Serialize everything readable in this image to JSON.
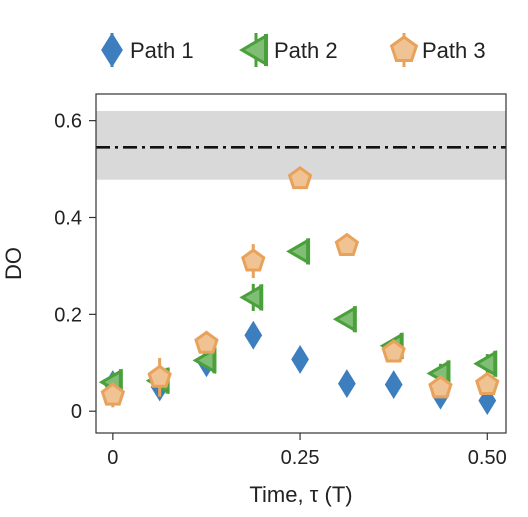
{
  "chart_data": {
    "type": "scatter",
    "xlabel": "Time, τ (T)",
    "ylabel": "DO",
    "xlim": [
      -0.0225,
      0.525
    ],
    "ylim": [
      -0.045,
      0.655
    ],
    "x_ticks": [
      0,
      0.25,
      0.5
    ],
    "x_tick_labels": [
      "0",
      "0.25",
      "0.50"
    ],
    "y_ticks": [
      0,
      0.2,
      0.4,
      0.6
    ],
    "y_tick_labels": [
      "0",
      "0.2",
      "0.4",
      "0.6"
    ],
    "grid": false,
    "legend_position": "top",
    "reference": {
      "value": 0.545,
      "band": [
        0.478,
        0.62
      ],
      "line_style": "dash-dot",
      "line_color": "#111111",
      "band_color": "#d9d9d9"
    },
    "series": [
      {
        "name": "Path 1",
        "marker": "diamond",
        "color": "#3d7ebf",
        "points": [
          {
            "x": 0.0,
            "y": 0.055,
            "err": 0.0
          },
          {
            "x": 0.0625,
            "y": 0.05,
            "err": 0.0
          },
          {
            "x": 0.125,
            "y": 0.1,
            "err": 0.0
          },
          {
            "x": 0.1875,
            "y": 0.157,
            "err": 0.0
          },
          {
            "x": 0.25,
            "y": 0.107,
            "err": 0.0
          },
          {
            "x": 0.3125,
            "y": 0.057,
            "err": 0.0
          },
          {
            "x": 0.375,
            "y": 0.055,
            "err": 0.0
          },
          {
            "x": 0.4375,
            "y": 0.033,
            "err": 0.0
          },
          {
            "x": 0.5,
            "y": 0.022,
            "err": 0.0
          }
        ]
      },
      {
        "name": "Path 2",
        "marker": "triangle-left",
        "color": "#4aa03a",
        "points": [
          {
            "x": 0.0,
            "y": 0.06,
            "err": 0.02
          },
          {
            "x": 0.0625,
            "y": 0.063,
            "err": 0.03
          },
          {
            "x": 0.125,
            "y": 0.105,
            "err": 0.0
          },
          {
            "x": 0.1875,
            "y": 0.235,
            "err": 0.028
          },
          {
            "x": 0.25,
            "y": 0.33,
            "err": 0.0
          },
          {
            "x": 0.3125,
            "y": 0.19,
            "err": 0.0
          },
          {
            "x": 0.375,
            "y": 0.135,
            "err": 0.0
          },
          {
            "x": 0.4375,
            "y": 0.078,
            "err": 0.02
          },
          {
            "x": 0.5,
            "y": 0.098,
            "err": 0.02
          }
        ]
      },
      {
        "name": "Path 3",
        "marker": "pentagon",
        "color": "#e8a25a",
        "points": [
          {
            "x": 0.0,
            "y": 0.033,
            "err": 0.025
          },
          {
            "x": 0.0625,
            "y": 0.07,
            "err": 0.04
          },
          {
            "x": 0.125,
            "y": 0.14,
            "err": 0.0
          },
          {
            "x": 0.1875,
            "y": 0.31,
            "err": 0.035
          },
          {
            "x": 0.25,
            "y": 0.48,
            "err": 0.0
          },
          {
            "x": 0.3125,
            "y": 0.342,
            "err": 0.0
          },
          {
            "x": 0.375,
            "y": 0.122,
            "err": 0.0
          },
          {
            "x": 0.4375,
            "y": 0.048,
            "err": 0.0
          },
          {
            "x": 0.5,
            "y": 0.055,
            "err": 0.0
          }
        ]
      }
    ]
  }
}
